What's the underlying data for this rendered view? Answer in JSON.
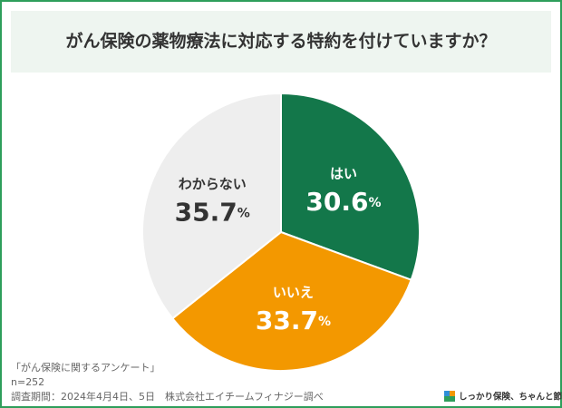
{
  "chart_data": {
    "type": "pie",
    "title": "がん保険の薬物療法に対応する特約を付けていますか？",
    "categories": [
      "はい",
      "いいえ",
      "わからない"
    ],
    "values": [
      30.6,
      33.7,
      35.7
    ],
    "value_labels": [
      "30.6%",
      "33.7%",
      "35.7%"
    ],
    "colors": [
      "#13774a",
      "#f39800",
      "#eeeeee"
    ],
    "notes": [
      "「がん保険に関するアンケート」",
      "n=252",
      "調査期間：2024年4月4日、5日　株式会社エイチームフィナジー調べ"
    ]
  },
  "logo": {
    "text": "しっかり保険、ちゃんと節約。"
  }
}
